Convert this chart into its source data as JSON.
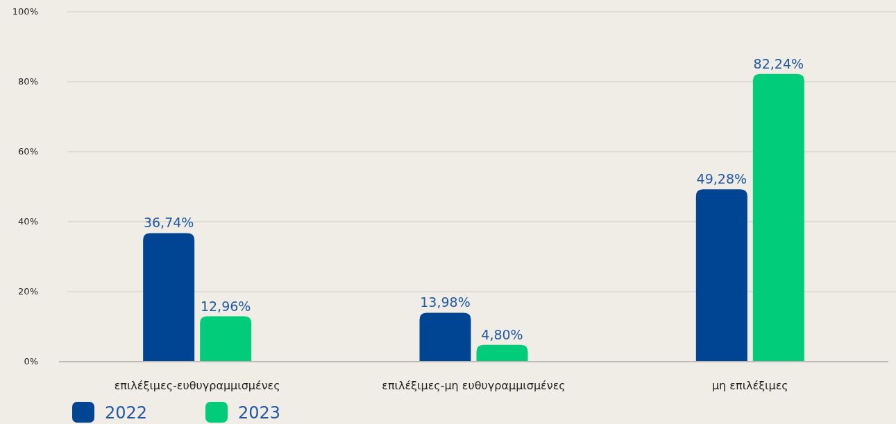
{
  "chart_data": {
    "type": "bar",
    "categories": [
      "επιλέξιμες-ευθυγραμμισμένες",
      "επιλέξιμες-μη ευθυγραμμισμένες",
      "μη επιλέξιμες"
    ],
    "series": [
      {
        "name": "2022",
        "color": "#004494",
        "values": [
          36.74,
          13.98,
          49.28
        ],
        "value_labels": [
          "36,74%",
          "13,98%",
          "49,28%"
        ]
      },
      {
        "name": "2023",
        "color": "#00cc7a",
        "values": [
          12.96,
          4.8,
          82.24
        ],
        "value_labels": [
          "12,96%",
          "4,80%",
          "82,24%"
        ]
      }
    ],
    "ylim": [
      0,
      100
    ],
    "yticks": [
      {
        "value": 0,
        "label": "0%"
      },
      {
        "value": 20,
        "label": "20%"
      },
      {
        "value": 40,
        "label": "40%"
      },
      {
        "value": 60,
        "label": "60%"
      },
      {
        "value": 80,
        "label": "80%"
      },
      {
        "value": 100,
        "label": "100%"
      }
    ],
    "grid": "y",
    "legend": "bottom left"
  }
}
